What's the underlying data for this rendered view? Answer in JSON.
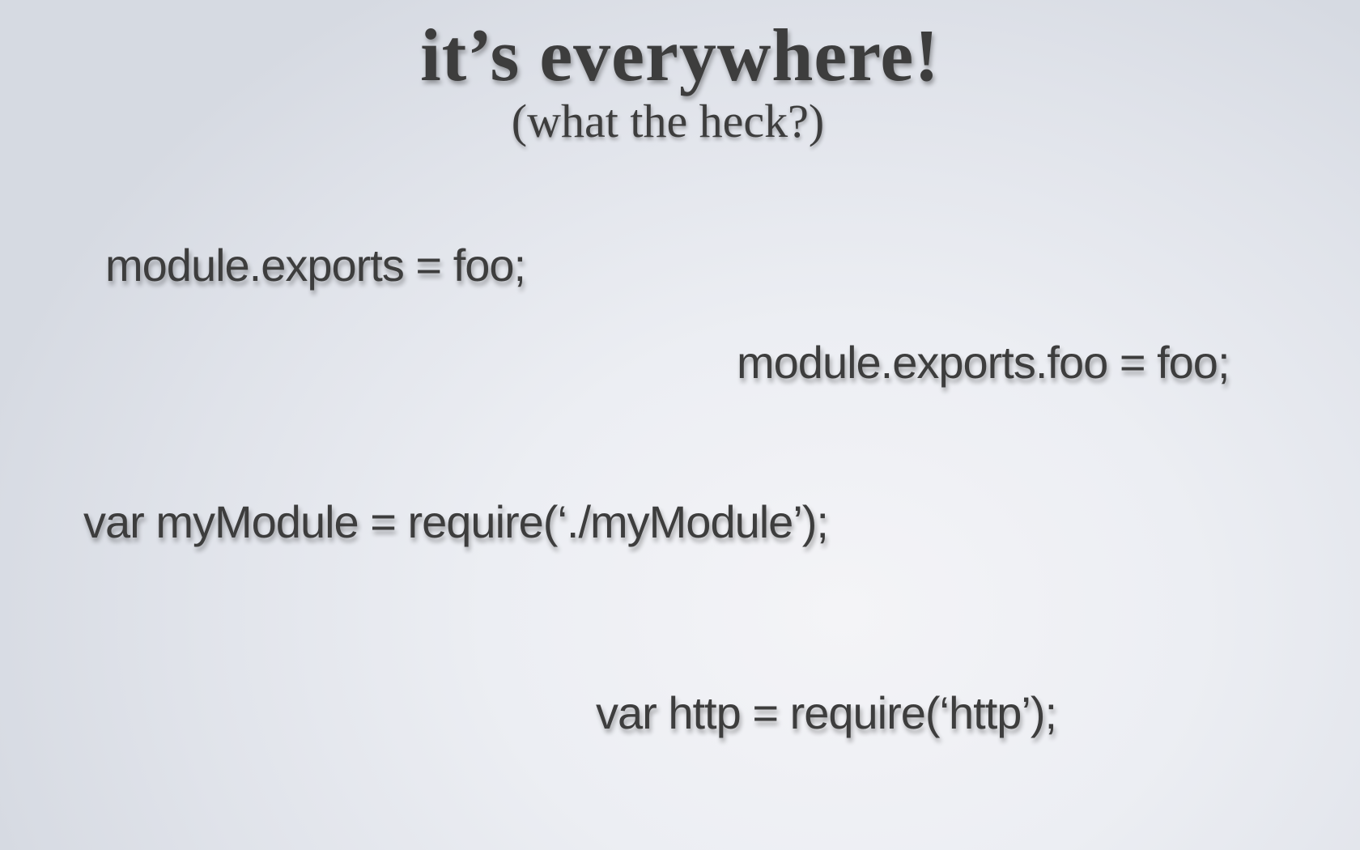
{
  "slide": {
    "title": "it’s everywhere!",
    "subtitle": "(what the heck?)",
    "code_lines": [
      "module.exports = foo;",
      "module.exports.foo = foo;",
      "var myModule = require(‘./myModule’);",
      "var http = require(‘http’);"
    ]
  }
}
